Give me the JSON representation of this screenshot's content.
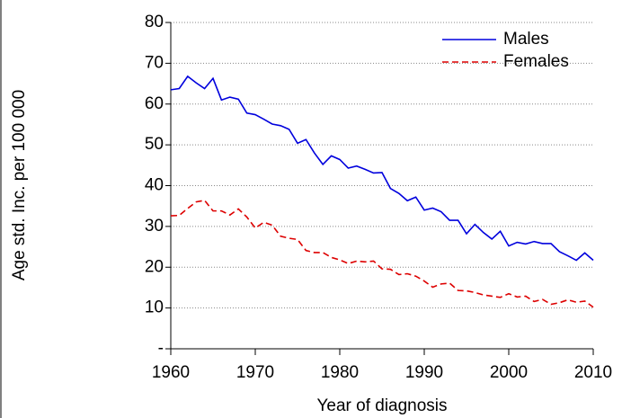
{
  "chart_data": {
    "type": "line",
    "xlabel": "Year of diagnosis",
    "ylabel": "Age std. Inc. per 100 000",
    "x": [
      1960,
      1961,
      1962,
      1963,
      1964,
      1965,
      1966,
      1967,
      1968,
      1969,
      1970,
      1971,
      1972,
      1973,
      1974,
      1975,
      1976,
      1977,
      1978,
      1979,
      1980,
      1981,
      1982,
      1983,
      1984,
      1985,
      1986,
      1987,
      1988,
      1989,
      1990,
      1991,
      1992,
      1993,
      1994,
      1995,
      1996,
      1997,
      1998,
      1999,
      2000,
      2001,
      2002,
      2003,
      2004,
      2005,
      2006,
      2007,
      2008,
      2009,
      2010
    ],
    "series": [
      {
        "name": "Males",
        "color": "#0000dd",
        "dash": "solid",
        "values": [
          63.5,
          63.8,
          66.8,
          65.2,
          63.8,
          66.3,
          61,
          61.7,
          61.2,
          57.8,
          57.4,
          56.3,
          55.1,
          54.7,
          53.8,
          50.4,
          51.3,
          48,
          45.2,
          47.3,
          46.4,
          44.3,
          44.8,
          44,
          43.1,
          43.2,
          39.3,
          38.1,
          36.3,
          37.2,
          34,
          34.5,
          33.6,
          31.5,
          31.5,
          28.2,
          30.5,
          28.5,
          26.9,
          28.8,
          25.2,
          26.1,
          25.7,
          26.3,
          25.8,
          25.8,
          23.8,
          22.8,
          21.7,
          23.5,
          21.7
        ]
      },
      {
        "name": "Females",
        "color": "#dd0000",
        "dash": "dashed",
        "values": [
          32.6,
          32.7,
          34.4,
          36,
          36.4,
          33.8,
          33.8,
          32.8,
          34.3,
          32.3,
          29.6,
          31,
          30.3,
          27.6,
          27.1,
          26.8,
          24.1,
          23.6,
          23.6,
          22.4,
          21.8,
          20.9,
          21.5,
          21.3,
          21.5,
          19.6,
          19.5,
          18.2,
          18.4,
          17.8,
          16.6,
          15.1,
          15.9,
          16.1,
          14.3,
          14.2,
          13.8,
          13.2,
          12.9,
          12.6,
          13.5,
          12.7,
          12.9,
          11.6,
          12.1,
          10.9,
          11.3,
          12,
          11.4,
          11.7,
          10.2
        ]
      }
    ],
    "xlim": [
      1960,
      2010
    ],
    "xticks": [
      1960,
      1970,
      1980,
      1990,
      2000,
      2010
    ],
    "ylim": [
      0,
      80
    ],
    "yticks": [
      {
        "value": 0,
        "label": "-"
      },
      10,
      20,
      30,
      40,
      50,
      60,
      70,
      80
    ],
    "grid": true,
    "legend": "upper right"
  }
}
